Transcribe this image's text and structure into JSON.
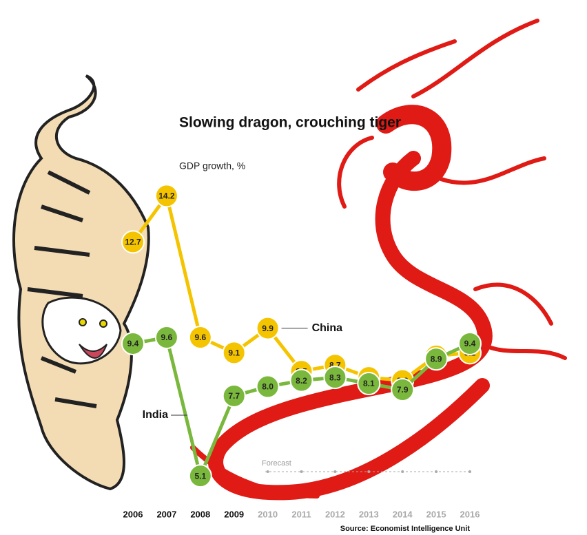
{
  "chart_data": {
    "type": "line",
    "title": "Slowing dragon, crouching tiger",
    "subtitle": "GDP growth, %",
    "categories": [
      "2006",
      "2007",
      "2008",
      "2009",
      "2010",
      "2011",
      "2012",
      "2013",
      "2014",
      "2015",
      "2016"
    ],
    "series": [
      {
        "name": "China",
        "color": "#f5c400",
        "values": [
          12.7,
          14.2,
          9.6,
          9.1,
          9.9,
          8.5,
          8.7,
          8.3,
          8.2,
          9.0,
          9.1
        ],
        "value_labels": [
          "12.7",
          "14.2",
          "9.6",
          "9.1",
          "9.9",
          "8.5",
          "8.7",
          "8.3",
          "8.2",
          "9.0",
          "9.1"
        ]
      },
      {
        "name": "India",
        "color": "#7ab83d",
        "values": [
          9.4,
          9.6,
          5.1,
          7.7,
          8.0,
          8.2,
          8.3,
          8.1,
          7.9,
          8.9,
          9.4
        ],
        "value_labels": [
          "9.4",
          "9.6",
          "5.1",
          "7.7",
          "8.0",
          "8.2",
          "8.3",
          "8.1",
          "7.9",
          "8.9",
          "9.4"
        ]
      }
    ],
    "ylim": [
      4.5,
      14.7
    ],
    "annotation": "Forecast",
    "source": "Source: Economist Intelligence Unit"
  }
}
